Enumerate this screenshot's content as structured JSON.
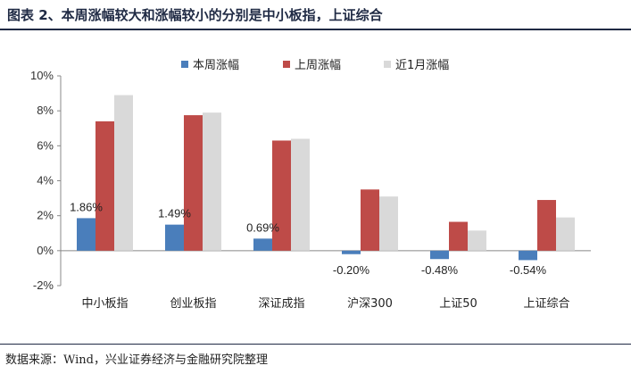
{
  "title": "图表 2、本周涨幅较大和涨幅较小的分别是中小板指，上证综合",
  "source": "数据来源：Wind，兴业证券经济与金融研究院整理",
  "chart_data": {
    "type": "bar",
    "categories": [
      "中小板指",
      "创业板指",
      "深证成指",
      "沪深300",
      "上证50",
      "上证综合"
    ],
    "series": [
      {
        "name": "本周涨幅",
        "color": "#4a7ebb",
        "values": [
          1.86,
          1.49,
          0.69,
          -0.2,
          -0.48,
          -0.54
        ]
      },
      {
        "name": "上周涨幅",
        "color": "#be4b48",
        "values": [
          7.4,
          7.75,
          6.3,
          3.5,
          1.65,
          2.9
        ]
      },
      {
        "name": "近1月涨幅",
        "color": "#d9d9d9",
        "values": [
          8.9,
          7.9,
          6.4,
          3.1,
          1.15,
          1.9
        ]
      }
    ],
    "data_labels": [
      "1.86%",
      "1.49%",
      "0.69%",
      "-0.20%",
      "-0.48%",
      "-0.54%"
    ],
    "yticks": [
      "-2%",
      "0%",
      "2%",
      "4%",
      "6%",
      "8%",
      "10%"
    ],
    "ylim": [
      -2,
      10
    ],
    "legend_position": "top-center",
    "grid": false
  }
}
